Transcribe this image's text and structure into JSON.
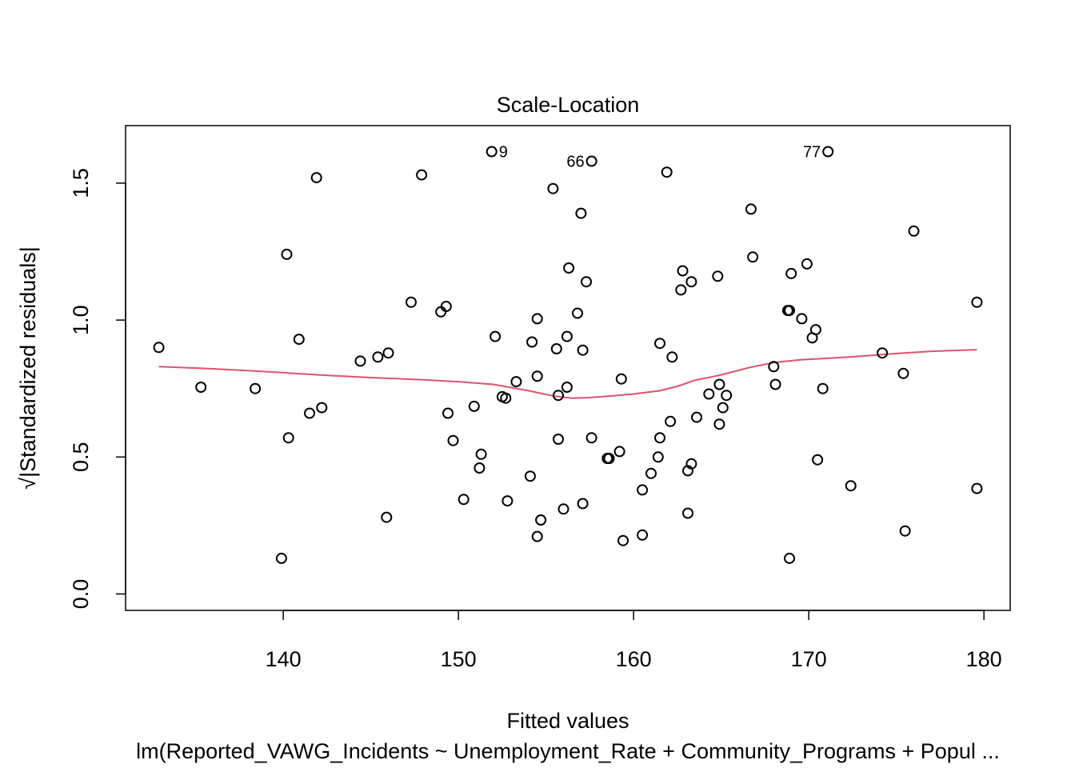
{
  "chart_data": {
    "type": "scatter",
    "title": "Scale-Location",
    "xlabel": "Fitted values",
    "ylabel": "√|Standardized residuals|",
    "subtitle": "lm(Reported_VAWG_Incidents ~ Unemployment_Rate + Community_Programs + Popul ...",
    "xlim": [
      131,
      181.5
    ],
    "ylim": [
      -0.06,
      1.71
    ],
    "xticks": [
      140,
      150,
      160,
      170,
      180
    ],
    "yticks": [
      0.0,
      0.5,
      1.0,
      1.5
    ],
    "grid": false,
    "colors": {
      "points": "#000000",
      "smoother": "#df536b"
    },
    "points": [
      [
        132.9,
        0.9
      ],
      [
        135.3,
        0.755
      ],
      [
        138.4,
        0.75
      ],
      [
        139.9,
        0.13
      ],
      [
        140.2,
        1.24
      ],
      [
        140.3,
        0.57
      ],
      [
        140.9,
        0.93
      ],
      [
        141.5,
        0.66
      ],
      [
        141.9,
        1.52
      ],
      [
        142.2,
        0.68
      ],
      [
        144.4,
        0.85
      ],
      [
        145.4,
        0.865
      ],
      [
        145.9,
        0.28
      ],
      [
        146.0,
        0.88
      ],
      [
        147.3,
        1.065
      ],
      [
        147.9,
        1.53
      ],
      [
        149.0,
        1.03
      ],
      [
        149.3,
        1.05
      ],
      [
        149.4,
        0.66
      ],
      [
        149.7,
        0.56
      ],
      [
        150.3,
        0.345
      ],
      [
        150.9,
        0.685
      ],
      [
        151.2,
        0.46
      ],
      [
        151.3,
        0.51
      ],
      [
        151.9,
        1.615
      ],
      [
        152.1,
        0.94
      ],
      [
        152.5,
        0.72
      ],
      [
        152.7,
        0.715
      ],
      [
        152.8,
        0.34
      ],
      [
        153.3,
        0.775
      ],
      [
        154.1,
        0.43
      ],
      [
        154.2,
        0.92
      ],
      [
        154.5,
        0.795
      ],
      [
        154.5,
        1.005
      ],
      [
        154.5,
        0.21
      ],
      [
        154.7,
        0.27
      ],
      [
        155.4,
        1.48
      ],
      [
        155.6,
        0.895
      ],
      [
        155.7,
        0.725
      ],
      [
        155.7,
        0.565
      ],
      [
        156.0,
        0.31
      ],
      [
        156.2,
        0.94
      ],
      [
        156.2,
        0.755
      ],
      [
        156.3,
        1.19
      ],
      [
        157.6,
        1.58
      ],
      [
        156.8,
        1.025
      ],
      [
        157.0,
        1.39
      ],
      [
        157.1,
        0.89
      ],
      [
        157.1,
        0.33
      ],
      [
        157.3,
        1.14
      ],
      [
        157.6,
        0.57
      ],
      [
        158.5,
        0.495
      ],
      [
        158.6,
        0.495
      ],
      [
        159.2,
        0.52
      ],
      [
        159.3,
        0.785
      ],
      [
        159.4,
        0.195
      ],
      [
        160.5,
        0.215
      ],
      [
        160.5,
        0.38
      ],
      [
        161.0,
        0.44
      ],
      [
        161.4,
        0.5
      ],
      [
        161.5,
        0.915
      ],
      [
        161.5,
        0.57
      ],
      [
        161.9,
        1.54
      ],
      [
        162.1,
        0.63
      ],
      [
        162.2,
        0.865
      ],
      [
        162.7,
        1.11
      ],
      [
        162.8,
        1.18
      ],
      [
        163.1,
        0.45
      ],
      [
        163.1,
        0.295
      ],
      [
        163.3,
        1.14
      ],
      [
        163.3,
        0.475
      ],
      [
        163.6,
        0.645
      ],
      [
        164.3,
        0.73
      ],
      [
        164.8,
        1.16
      ],
      [
        164.9,
        0.765
      ],
      [
        164.9,
        0.62
      ],
      [
        165.1,
        0.68
      ],
      [
        165.3,
        0.725
      ],
      [
        166.7,
        1.405
      ],
      [
        166.8,
        1.23
      ],
      [
        168.0,
        0.83
      ],
      [
        168.1,
        0.765
      ],
      [
        168.8,
        1.035
      ],
      [
        168.9,
        1.035
      ],
      [
        168.9,
        0.13
      ],
      [
        169.0,
        1.17
      ],
      [
        169.6,
        1.005
      ],
      [
        169.9,
        1.205
      ],
      [
        170.2,
        0.935
      ],
      [
        170.4,
        0.965
      ],
      [
        170.5,
        0.49
      ],
      [
        170.8,
        0.75
      ],
      [
        171.1,
        1.615
      ],
      [
        172.4,
        0.395
      ],
      [
        174.2,
        0.88
      ],
      [
        175.4,
        0.805
      ],
      [
        175.5,
        0.23
      ],
      [
        176.0,
        1.325
      ],
      [
        179.6,
        0.385
      ],
      [
        179.6,
        1.065
      ]
    ],
    "smoother": [
      [
        132.9,
        0.83
      ],
      [
        136.0,
        0.822
      ],
      [
        139.0,
        0.812
      ],
      [
        142.0,
        0.8
      ],
      [
        145.0,
        0.79
      ],
      [
        148.0,
        0.782
      ],
      [
        150.0,
        0.775
      ],
      [
        152.0,
        0.765
      ],
      [
        154.0,
        0.742
      ],
      [
        155.5,
        0.722
      ],
      [
        156.5,
        0.715
      ],
      [
        157.5,
        0.717
      ],
      [
        158.5,
        0.722
      ],
      [
        160.0,
        0.73
      ],
      [
        161.5,
        0.742
      ],
      [
        162.5,
        0.758
      ],
      [
        163.5,
        0.78
      ],
      [
        165.0,
        0.8
      ],
      [
        166.5,
        0.825
      ],
      [
        168.0,
        0.845
      ],
      [
        169.5,
        0.855
      ],
      [
        171.0,
        0.86
      ],
      [
        173.0,
        0.868
      ],
      [
        175.0,
        0.878
      ],
      [
        177.0,
        0.886
      ],
      [
        179.6,
        0.892
      ]
    ],
    "labeled_points": [
      {
        "label": "9",
        "x": 151.9,
        "y": 1.615,
        "side": "right"
      },
      {
        "label": "66",
        "x": 157.6,
        "y": 1.58,
        "side": "left"
      },
      {
        "label": "77",
        "x": 171.1,
        "y": 1.615,
        "side": "left"
      }
    ]
  }
}
